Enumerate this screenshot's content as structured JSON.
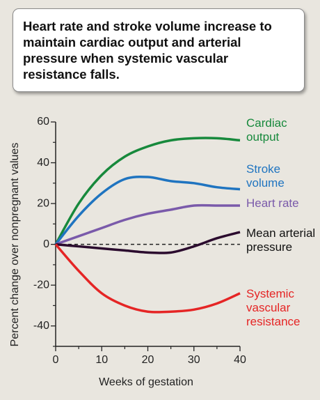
{
  "chart_data": {
    "type": "line",
    "title": "Heart rate and stroke volume increase to maintain cardiac output and arterial pressure when systemic vascular resistance falls.",
    "x_label": "Weeks of gestation",
    "y_label": "Percent change over nonpregnant values",
    "x": [
      0,
      5,
      10,
      15,
      20,
      25,
      30,
      35,
      40
    ],
    "series": [
      {
        "name": "Cardiac output",
        "color": "#17893c",
        "values": [
          0,
          20,
          34,
          43,
          48,
          51,
          52,
          52,
          51
        ]
      },
      {
        "name": "Stroke volume",
        "color": "#1f74c0",
        "values": [
          0,
          14,
          25,
          32,
          33,
          31,
          30,
          28,
          27
        ]
      },
      {
        "name": "Heart rate",
        "color": "#7a5aaa",
        "values": [
          0,
          4,
          8,
          12,
          15,
          17,
          19,
          19,
          19
        ]
      },
      {
        "name": "Mean arterial pressure",
        "color": "#2b0b2e",
        "values": [
          0,
          -1,
          -2,
          -3,
          -4,
          -4,
          -1,
          3,
          6
        ]
      },
      {
        "name": "Systemic vascular resistance",
        "color": "#e52525",
        "values": [
          0,
          -13,
          -24,
          -30,
          -33,
          -33,
          -32,
          -29,
          -24
        ]
      }
    ],
    "xlim": [
      0,
      40
    ],
    "xticks": [
      0,
      10,
      20,
      30,
      40
    ],
    "xminorticks": [
      5,
      15,
      25,
      35
    ],
    "ylim": [
      -50,
      60
    ],
    "yticks": [
      -40,
      -20,
      0,
      20,
      40,
      60
    ],
    "yminorticks": [
      -50,
      -30,
      -10,
      10,
      30,
      50
    ],
    "reference_line": 0
  }
}
